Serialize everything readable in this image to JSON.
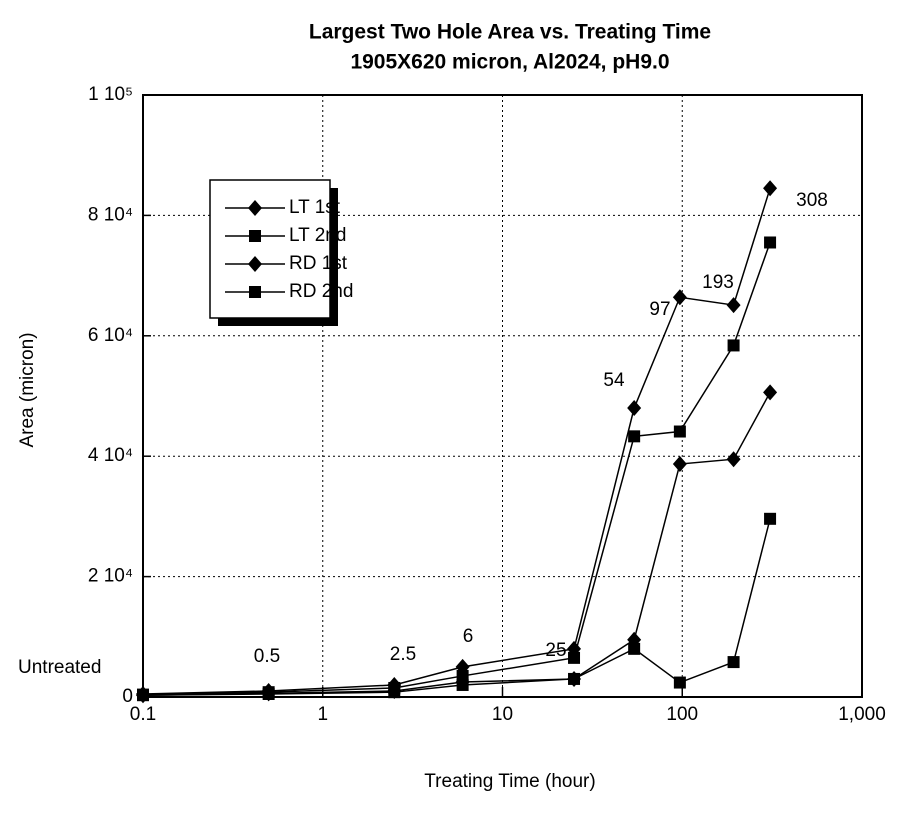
{
  "chart_data": {
    "type": "line",
    "title": "Largest Two Hole Area vs. Treating Time",
    "subtitle": "1905X620 micron, Al2024, pH9.0",
    "x_label": "Treating Time (hour)",
    "y_label": "Area (micron)",
    "x": [
      0.1,
      0.5,
      2.5,
      6,
      25,
      54,
      97,
      193,
      308
    ],
    "series": [
      {
        "name": "LT 1st",
        "color": "#000000",
        "marker": "diamond",
        "values": [
          500,
          1000,
          2000,
          5000,
          8000,
          48000,
          66400,
          65100,
          84500
        ]
      },
      {
        "name": "LT 2nd",
        "color": "#000000",
        "marker": "square",
        "values": [
          400,
          800,
          1500,
          3500,
          6500,
          43300,
          44100,
          58400,
          75500
        ]
      },
      {
        "name": "RD 1st",
        "color": "#000000",
        "marker": "diamond",
        "values": [
          300,
          600,
          1000,
          2500,
          3000,
          9500,
          38700,
          39500,
          50600
        ]
      },
      {
        "name": "RD 2nd",
        "color": "#000000",
        "marker": "square",
        "values": [
          300,
          500,
          800,
          2000,
          3000,
          8000,
          2400,
          5800,
          29600
        ]
      }
    ],
    "annotations": [
      "Untreated",
      "0.5",
      "2.5",
      "6",
      "25",
      "54",
      "97",
      "193",
      "308"
    ],
    "x_log": true,
    "xlim": [
      0.1,
      1000
    ],
    "xticks": [
      0.1,
      1,
      10,
      100,
      {
        "value": 1000,
        "label": "1,000"
      }
    ],
    "ylim": [
      0,
      100000
    ],
    "yticks": [
      0,
      {
        "value": 20000,
        "label": "2 10⁴"
      },
      {
        "value": 40000,
        "label": "4 10⁴"
      },
      {
        "value": 60000,
        "label": "6 10⁴"
      },
      {
        "value": 80000,
        "label": "8 10⁴"
      },
      {
        "value": 100000,
        "label": "1 10⁵"
      }
    ],
    "grid": true
  }
}
